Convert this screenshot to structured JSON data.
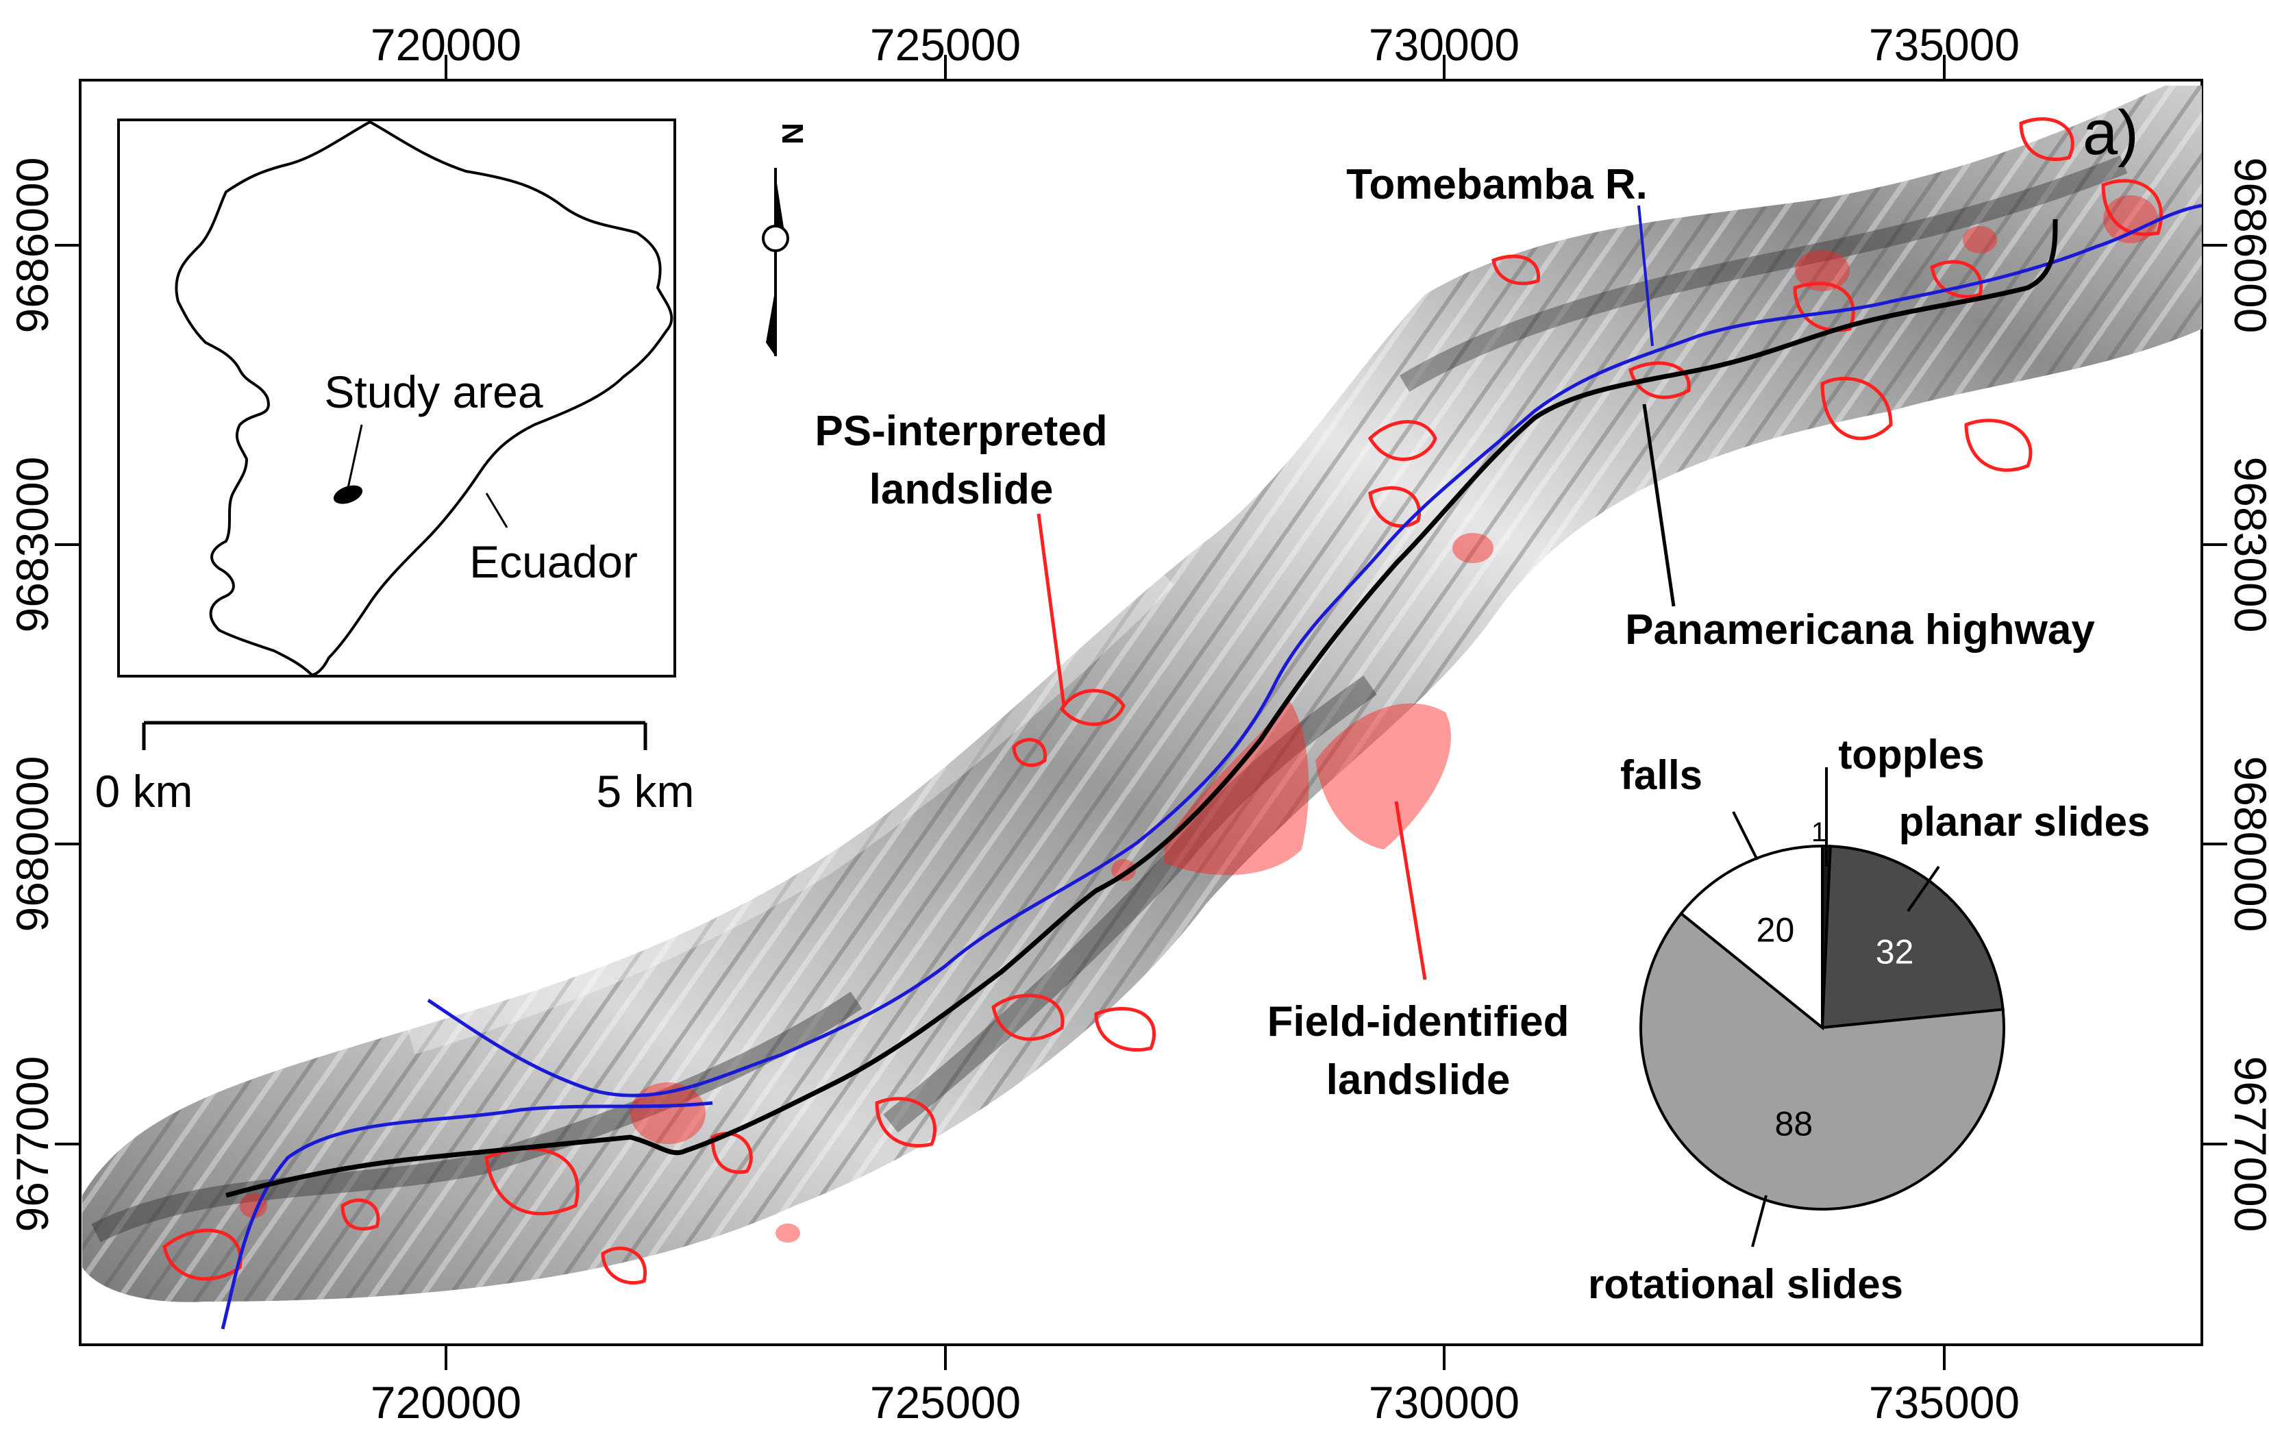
{
  "panel_label": "a)",
  "axes": {
    "x_ticks": [
      "720000",
      "725000",
      "730000",
      "735000"
    ],
    "y_ticks": [
      "9686000",
      "9683000",
      "9680000",
      "9677000"
    ]
  },
  "inset": {
    "study_area_label": "Study area",
    "country_label": "Ecuador"
  },
  "north_arrow": {
    "letter": "N"
  },
  "scale_bar": {
    "start_label": "0 km",
    "end_label": "5 km"
  },
  "labels": {
    "river": "Tomebamba R.",
    "ps_landslide_line1": "PS-interpreted",
    "ps_landslide_line2": "landslide",
    "highway": "Panamericana highway",
    "field_landslide_line1": "Field-identified",
    "field_landslide_line2": "landslide"
  },
  "colors": {
    "river": "#1a1ad6",
    "highway": "#000000",
    "landslide": "#ff2020",
    "ps_label": "#ff1a1a",
    "river_label": "#1010d0"
  },
  "chart_data": {
    "type": "pie",
    "categories": [
      "topples",
      "planar slides",
      "rotational slides",
      "falls"
    ],
    "values": [
      1,
      32,
      88,
      20
    ],
    "value_labels": [
      "1",
      "32",
      "88",
      "20"
    ],
    "colors": [
      "#1a1a1a",
      "#4a4a4a",
      "#a0a0a0",
      "#ffffff"
    ]
  }
}
